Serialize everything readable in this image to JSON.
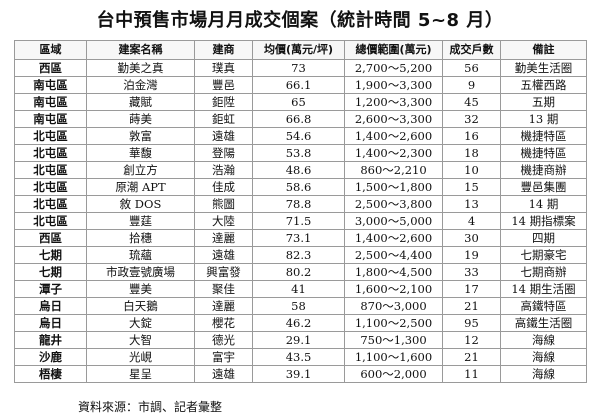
{
  "title": "台中預售市場月月成交個案（統計時間 5~8 月）",
  "table": {
    "headers": [
      "區域",
      "建案名稱",
      "建商",
      "均價(萬元/坪)",
      "總價範圍(萬元)",
      "成交戶數",
      "備註"
    ],
    "rows": [
      [
        "西區",
        "勤美之真",
        "璞真",
        "73",
        "2,700～5,200",
        "56",
        "勤美生活圈"
      ],
      [
        "南屯區",
        "泊金灣",
        "豐邑",
        "66.1",
        "1,900～3,300",
        "9",
        "五權西路"
      ],
      [
        "南屯區",
        "藏賦",
        "鉅陞",
        "65",
        "1,200～3,300",
        "45",
        "五期"
      ],
      [
        "南屯區",
        "蒔美",
        "鉅虹",
        "66.8",
        "2,600～3,300",
        "32",
        "13 期"
      ],
      [
        "北屯區",
        "敦富",
        "遠雄",
        "54.6",
        "1,400～2,600",
        "16",
        "機捷特區"
      ],
      [
        "北屯區",
        "華馥",
        "登陽",
        "53.8",
        "1,400～2,300",
        "18",
        "機捷特區"
      ],
      [
        "北屯區",
        "創立方",
        "浩瀚",
        "48.6",
        "860～2,210",
        "10",
        "機捷商辦"
      ],
      [
        "北屯區",
        "原潮 APT",
        "佳成",
        "58.6",
        "1,500～1,800",
        "15",
        "豐邑集團"
      ],
      [
        "北屯區",
        "敘 DOS",
        "熊圖",
        "78.8",
        "2,500～3,800",
        "13",
        "14 期"
      ],
      [
        "北屯區",
        "豐莛",
        "大陸",
        "71.5",
        "3,000～5,000",
        "4",
        "14 期指標案"
      ],
      [
        "西區",
        "拾穗",
        "達麗",
        "73.1",
        "1,400～2,600",
        "30",
        "四期"
      ],
      [
        "七期",
        "琉蘊",
        "遠雄",
        "82.3",
        "2,500～4,400",
        "19",
        "七期豪宅"
      ],
      [
        "七期",
        "市政壹號廣場",
        "興富發",
        "80.2",
        "1,800～4,500",
        "33",
        "七期商辦"
      ],
      [
        "潭子",
        "豐美",
        "聚佳",
        "41",
        "1,600～2,100",
        "17",
        "14 期生活圈"
      ],
      [
        "烏日",
        "白天鵝",
        "達麗",
        "58",
        "870～3,000",
        "21",
        "高鐵特區"
      ],
      [
        "烏日",
        "大錠",
        "櫻花",
        "46.2",
        "1,100～2,500",
        "95",
        "高鐵生活圈"
      ],
      [
        "龍井",
        "大智",
        "德光",
        "29.1",
        "750～1,300",
        "12",
        "海線"
      ],
      [
        "沙鹿",
        "光峴",
        "富宇",
        "43.5",
        "1,100～1,600",
        "21",
        "海線"
      ],
      [
        "梧棲",
        "星呈",
        "遠雄",
        "39.1",
        "600～2,000",
        "11",
        "海線"
      ]
    ]
  },
  "source": "資料來源：市調、記者彙整"
}
